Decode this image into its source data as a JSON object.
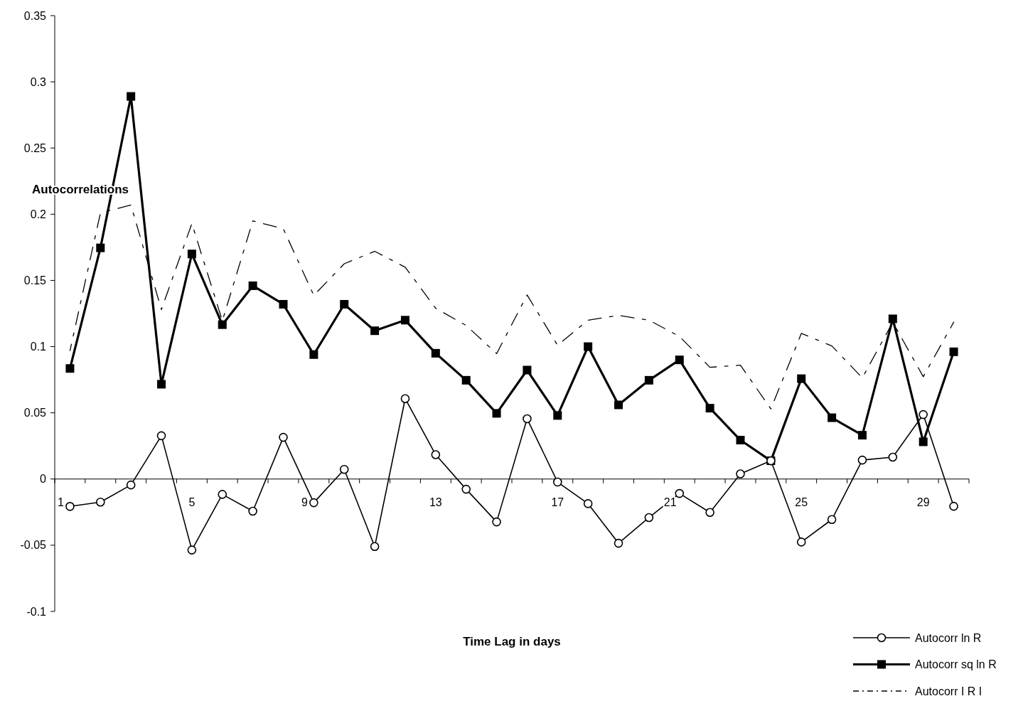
{
  "chart_data": {
    "type": "line",
    "xlabel": "Time Lag in days",
    "ylabel": "Autocorrelations",
    "categories": [
      "1",
      null,
      null,
      null,
      "5",
      null,
      null,
      null,
      "9",
      null,
      null,
      null,
      "13",
      null,
      null,
      null,
      "17",
      null,
      null,
      null,
      "21",
      null,
      null,
      null,
      "25",
      null,
      null,
      null,
      "29",
      null
    ],
    "ylim": [
      -0.1,
      0.35
    ],
    "yticks": [
      -0.1,
      -0.05,
      0,
      0.05,
      0.1,
      0.15,
      0.2,
      0.25,
      0.3,
      0.35
    ],
    "grid": false,
    "legend": "bottom right",
    "series": [
      {
        "name": "Autocorr ln R",
        "color": "#000000",
        "marker": "circle",
        "line_style": "solid",
        "values": [
          -0.0207,
          -0.0174,
          -0.0045,
          0.0327,
          -0.0536,
          -0.0116,
          -0.0243,
          0.0315,
          -0.0179,
          0.0073,
          -0.051,
          0.0607,
          0.0184,
          -0.0077,
          -0.0324,
          0.0455,
          -0.0023,
          -0.0186,
          -0.0485,
          -0.0291,
          -0.0109,
          -0.0252,
          0.0039,
          0.0138,
          -0.0476,
          -0.0306,
          0.0143,
          0.0165,
          0.0487,
          -0.0206
        ]
      },
      {
        "name": "Autocorr sq ln R",
        "color": "#000000",
        "marker": "square",
        "line_style": "solid",
        "values": [
          0.0835,
          0.1746,
          0.289,
          0.0716,
          0.17,
          0.1166,
          0.146,
          0.132,
          0.094,
          0.132,
          0.112,
          0.12,
          0.095,
          0.0746,
          0.0496,
          0.0823,
          0.048,
          0.1,
          0.056,
          0.0746,
          0.09,
          0.0535,
          0.0294,
          0.0138,
          0.0758,
          0.0463,
          0.0331,
          0.121,
          0.0281,
          0.0961
        ]
      },
      {
        "name": "Autocorr I R I",
        "color": "#000000",
        "marker": "none",
        "line_style": "dashed",
        "values": [
          0.097,
          0.201,
          0.207,
          0.128,
          0.193,
          0.1195,
          0.195,
          0.189,
          0.1387,
          0.1626,
          0.172,
          0.16,
          0.129,
          0.116,
          0.0947,
          0.139,
          0.101,
          0.12,
          0.1236,
          0.12,
          0.1077,
          0.0844,
          0.086,
          0.053,
          0.11,
          0.1005,
          0.0764,
          0.1185,
          0.0773,
          0.1185
        ]
      }
    ]
  }
}
